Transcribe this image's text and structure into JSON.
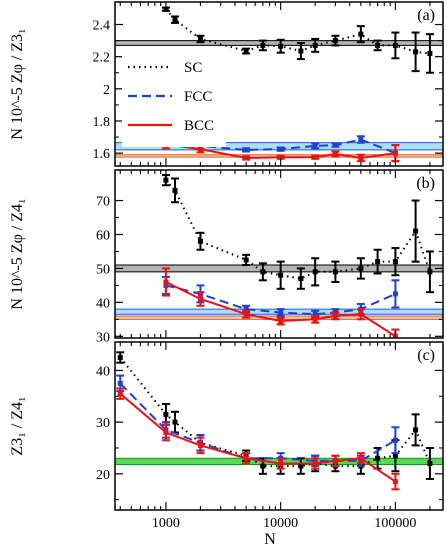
{
  "chart_data": [
    {
      "panel": "(a)",
      "type": "line",
      "xscale": "log",
      "xlim": [
        360,
        260000
      ],
      "ylim": [
        1.52,
        2.54
      ],
      "yticks": [
        1.6,
        1.8,
        2.0,
        2.2,
        2.4
      ],
      "ytick_labels": [
        "1.6",
        "1.8",
        "2",
        "2.2",
        "2.4"
      ],
      "ylabel": "N 10^-5 Zφ / Z3₁",
      "bands": [
        {
          "lo": 2.27,
          "hi": 2.3,
          "color": "#9a9a9a",
          "edge": "#000000"
        },
        {
          "lo": 1.62,
          "hi": 1.665,
          "color": "#8fd3f4",
          "edge": "#1f5fd6"
        },
        {
          "lo": 1.575,
          "hi": 1.59,
          "color": "#f6b48a",
          "edge": "#e06020"
        }
      ],
      "series": [
        {
          "name": "SC",
          "color": "#000000",
          "dash": "1.5,4",
          "points": [
            [
              1000,
              2.495,
              0.01
            ],
            [
              1200,
              2.43,
              0.02
            ],
            [
              2000,
              2.31,
              0.02
            ],
            [
              5000,
              2.235,
              0.015
            ],
            [
              7000,
              2.27,
              0.03
            ],
            [
              10000,
              2.265,
              0.04
            ],
            [
              15000,
              2.235,
              0.05
            ],
            [
              20000,
              2.27,
              0.04
            ],
            [
              30000,
              2.3,
              0.03
            ],
            [
              50000,
              2.34,
              0.05
            ],
            [
              70000,
              2.27,
              0.03
            ],
            [
              100000,
              2.27,
              0.08
            ],
            [
              150000,
              2.23,
              0.12
            ],
            [
              200000,
              2.22,
              0.12
            ]
          ]
        },
        {
          "name": "FCC",
          "color": "#1f3fd6",
          "dash": "9,5",
          "points": [
            [
              1000,
              1.685,
              0.025
            ],
            [
              2000,
              1.645,
              0.02
            ],
            [
              5000,
              1.62,
              0.01
            ],
            [
              10000,
              1.625,
              0.01
            ],
            [
              20000,
              1.645,
              0.015
            ],
            [
              30000,
              1.65,
              0.01
            ],
            [
              50000,
              1.685,
              0.02
            ],
            [
              100000,
              1.6,
              0.05
            ]
          ]
        },
        {
          "name": "BCC",
          "color": "#ee1111",
          "dash": "",
          "points": [
            [
              1000,
              1.655,
              0.025
            ],
            [
              2000,
              1.625,
              0.02
            ],
            [
              5000,
              1.57,
              0.01
            ],
            [
              10000,
              1.575,
              0.01
            ],
            [
              20000,
              1.575,
              0.01
            ],
            [
              30000,
              1.595,
              0.015
            ],
            [
              50000,
              1.57,
              0.02
            ],
            [
              100000,
              1.6,
              0.05
            ]
          ]
        }
      ]
    },
    {
      "panel": "(b)",
      "type": "line",
      "xscale": "log",
      "xlim": [
        360,
        260000
      ],
      "ylim": [
        29.5,
        79
      ],
      "yticks": [
        30,
        40,
        50,
        60,
        70
      ],
      "ytick_labels": [
        "30",
        "40",
        "50",
        "60",
        "70"
      ],
      "ylabel": "N 10^-5 Zφ / Z4₁",
      "bands": [
        {
          "lo": 49.0,
          "hi": 51.0,
          "color": "#9a9a9a",
          "edge": "#000000"
        },
        {
          "lo": 36.5,
          "hi": 38.0,
          "color": "#8fd3f4",
          "edge": "#1f5fd6"
        },
        {
          "lo": 35.0,
          "hi": 36.0,
          "color": "#f6b48a",
          "edge": "#e06020"
        }
      ],
      "series": [
        {
          "name": "SC",
          "color": "#000000",
          "dash": "1.5,4",
          "points": [
            [
              1000,
              76,
              1.5
            ],
            [
              1200,
              73,
              3.5
            ],
            [
              2000,
              58,
              2.5
            ],
            [
              5000,
              52.5,
              1.5
            ],
            [
              7000,
              49,
              2.5
            ],
            [
              10000,
              48,
              4
            ],
            [
              15000,
              47,
              3
            ],
            [
              20000,
              49,
              4
            ],
            [
              30000,
              49,
              3
            ],
            [
              50000,
              50,
              3
            ],
            [
              70000,
              52,
              3.5
            ],
            [
              100000,
              52,
              4
            ],
            [
              150000,
              61,
              9
            ],
            [
              200000,
              49,
              6
            ]
          ]
        },
        {
          "name": "FCC",
          "color": "#1f3fd6",
          "dash": "9,5",
          "points": [
            [
              1000,
              45,
              2.5
            ],
            [
              2000,
              42.5,
              2.5
            ],
            [
              5000,
              38,
              1
            ],
            [
              10000,
              37,
              1
            ],
            [
              20000,
              36.5,
              1
            ],
            [
              30000,
              37,
              1
            ],
            [
              50000,
              38,
              1.5
            ],
            [
              100000,
              42.5,
              4
            ]
          ]
        },
        {
          "name": "BCC",
          "color": "#ee1111",
          "dash": "",
          "points": [
            [
              1000,
              46,
              4
            ],
            [
              2000,
              41,
              2
            ],
            [
              5000,
              36.5,
              1
            ],
            [
              10000,
              34.5,
              1
            ],
            [
              20000,
              35,
              1
            ],
            [
              30000,
              36,
              1
            ],
            [
              50000,
              36.5,
              1.5
            ],
            [
              100000,
              30,
              2
            ]
          ]
        }
      ]
    },
    {
      "panel": "(c)",
      "type": "line",
      "xscale": "log",
      "xlim": [
        360,
        260000
      ],
      "ylim": [
        13,
        45.5
      ],
      "yticks": [
        20,
        30,
        40
      ],
      "ytick_labels": [
        "20",
        "30",
        "40"
      ],
      "ylabel": "Z3₁ / Z4₁",
      "xlabel": "N",
      "xticks": [
        1000,
        10000,
        100000
      ],
      "xtick_labels": [
        "1000",
        "10000",
        "100000"
      ],
      "bands": [
        {
          "lo": 21.8,
          "hi": 23.0,
          "color": "#22cc22",
          "edge": "#119911"
        }
      ],
      "series": [
        {
          "name": "SC",
          "color": "#000000",
          "dash": "1.5,4",
          "points": [
            [
              400,
              42.5,
              1
            ],
            [
              1000,
              31.5,
              2
            ],
            [
              1200,
              30,
              2
            ],
            [
              2000,
              26,
              1.5
            ],
            [
              5000,
              23.5,
              1
            ],
            [
              7000,
              21.5,
              1.5
            ],
            [
              10000,
              21.5,
              1.5
            ],
            [
              15000,
              21.5,
              1.5
            ],
            [
              20000,
              22,
              1.5
            ],
            [
              30000,
              21.5,
              1
            ],
            [
              50000,
              21.5,
              1.5
            ],
            [
              70000,
              23,
              2
            ],
            [
              100000,
              23.5,
              3
            ],
            [
              150000,
              28.5,
              3
            ],
            [
              200000,
              22,
              3
            ]
          ]
        },
        {
          "name": "FCC",
          "color": "#1f3fd6",
          "dash": "9,5",
          "points": [
            [
              400,
              37.5,
              1.5
            ],
            [
              1000,
              28.5,
              1.5
            ],
            [
              2000,
              26,
              1.5
            ],
            [
              5000,
              23,
              1
            ],
            [
              10000,
              23,
              1
            ],
            [
              20000,
              22.5,
              1
            ],
            [
              30000,
              22.5,
              1
            ],
            [
              50000,
              22.5,
              1
            ],
            [
              100000,
              26.5,
              2.5
            ]
          ]
        },
        {
          "name": "BCC",
          "color": "#ee1111",
          "dash": "",
          "points": [
            [
              400,
              35.5,
              1
            ],
            [
              1000,
              28,
              1.5
            ],
            [
              2000,
              25.5,
              1.5
            ],
            [
              5000,
              23,
              1
            ],
            [
              10000,
              22,
              1
            ],
            [
              20000,
              22,
              1
            ],
            [
              30000,
              22.5,
              1
            ],
            [
              50000,
              23,
              1
            ],
            [
              100000,
              18.5,
              1.5
            ]
          ]
        }
      ]
    }
  ],
  "legend": {
    "placement": "middle-left of panel (a)",
    "entries": [
      {
        "label": "SC",
        "color": "#000000",
        "dash": "1.5,4"
      },
      {
        "label": "FCC",
        "color": "#1f3fd6",
        "dash": "9,5"
      },
      {
        "label": "BCC",
        "color": "#ee1111",
        "dash": ""
      }
    ]
  }
}
